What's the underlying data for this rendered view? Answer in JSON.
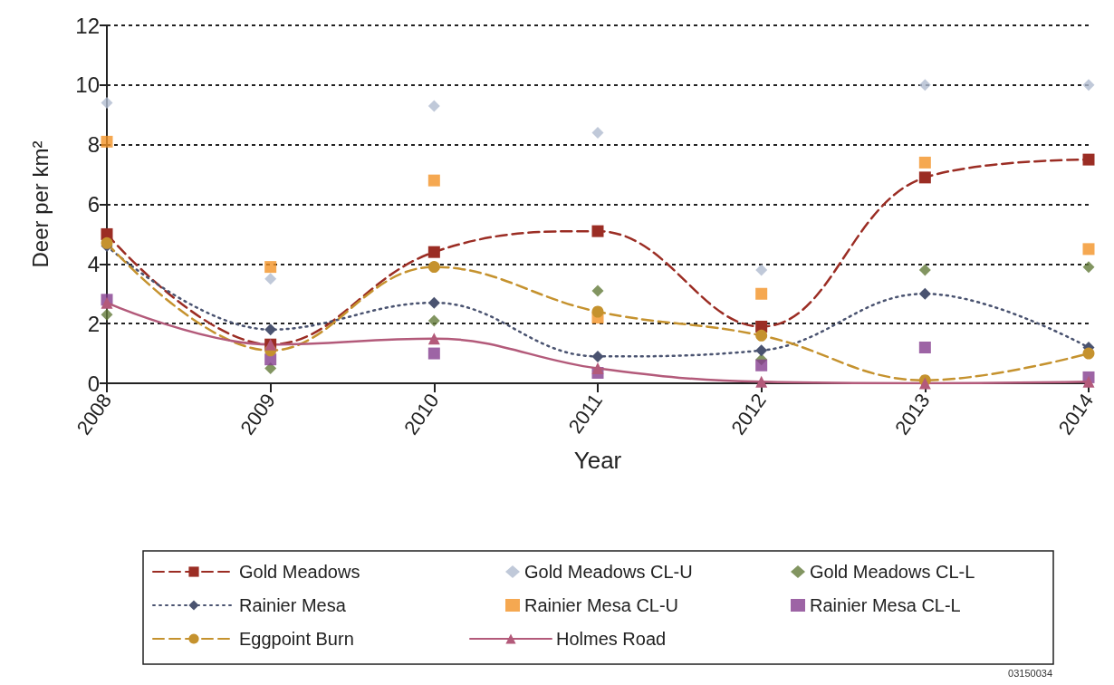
{
  "chart_data": {
    "type": "line",
    "xlabel": "Year",
    "ylabel": "Deer per km²",
    "categories": [
      "2008",
      "2009",
      "2010",
      "2011",
      "2012",
      "2013",
      "2014"
    ],
    "ylim": [
      0,
      12
    ],
    "yticks": [
      0,
      2,
      4,
      6,
      8,
      10,
      12
    ],
    "grid": "y",
    "legend": "bottom",
    "annotations": [
      "03150034"
    ],
    "series": [
      {
        "name": "Gold Meadows",
        "color": "#9b2d24",
        "line_style": "dashed",
        "marker": "square",
        "values": [
          5.0,
          1.3,
          4.4,
          5.1,
          1.9,
          6.9,
          7.5
        ]
      },
      {
        "name": "Gold Meadows CL-U",
        "type": "scatter",
        "color": "#b0bccf",
        "marker": "diamond",
        "values": [
          9.4,
          3.5,
          9.3,
          8.4,
          3.8,
          10.0,
          10.0
        ]
      },
      {
        "name": "Gold Meadows CL-L",
        "type": "scatter",
        "color": "#637a3a",
        "marker": "diamond",
        "values": [
          2.3,
          0.5,
          2.1,
          3.1,
          0.8,
          3.8,
          3.9
        ]
      },
      {
        "name": "Rainier Mesa",
        "color": "#4a5370",
        "line_style": "dotted",
        "marker": "diamond",
        "values": [
          4.6,
          1.8,
          2.7,
          0.9,
          1.1,
          3.0,
          1.2
        ]
      },
      {
        "name": "Rainier Mesa CL-U",
        "type": "scatter",
        "color": "#f39226",
        "marker": "square",
        "values": [
          8.1,
          3.9,
          6.8,
          2.2,
          3.0,
          7.4,
          4.5
        ]
      },
      {
        "name": "Rainier Mesa CL-L",
        "type": "scatter",
        "color": "#843d8e",
        "marker": "square",
        "values": [
          2.8,
          0.8,
          1.0,
          0.35,
          0.6,
          1.2,
          0.2
        ]
      },
      {
        "name": "Eggpoint Burn",
        "color": "#c5922e",
        "line_style": "dashed",
        "marker": "circle",
        "values": [
          4.7,
          1.1,
          3.9,
          2.4,
          1.6,
          0.1,
          1.0
        ]
      },
      {
        "name": "Holmes Road",
        "color": "#b35a7a",
        "line_style": "solid",
        "marker": "triangle",
        "values": [
          2.7,
          1.3,
          1.5,
          0.5,
          0.05,
          0.0,
          0.05
        ]
      }
    ]
  }
}
